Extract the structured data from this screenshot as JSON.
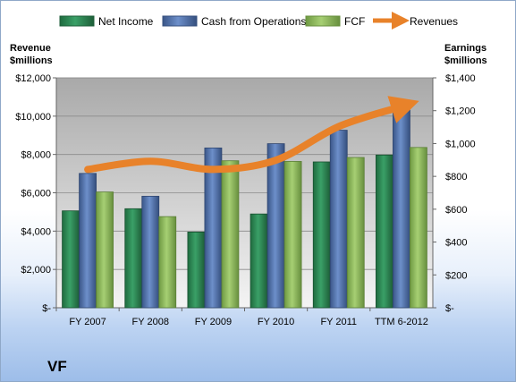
{
  "chart_data": {
    "type": "bar",
    "title": "",
    "company": "VF",
    "categories": [
      "FY 2007",
      "FY 2008",
      "FY 2009",
      "FY 2010",
      "FY 2011",
      "TTM 6-2012"
    ],
    "left_axis": {
      "label_line1": "Revenue",
      "label_line2": "$millions",
      "ylim": [
        0,
        12000
      ],
      "ticks": [
        0,
        2000,
        4000,
        6000,
        8000,
        10000,
        12000
      ],
      "tick_labels": [
        "$-",
        "$2,000",
        "$4,000",
        "$6,000",
        "$8,000",
        "$10,000",
        "$12,000"
      ]
    },
    "right_axis": {
      "label_line1": "Earnings",
      "label_line2": "$millions",
      "ylim": [
        0,
        1400
      ],
      "ticks": [
        0,
        200,
        400,
        600,
        800,
        1000,
        1200,
        1400
      ],
      "tick_labels": [
        "$-",
        "$200",
        "$400",
        "$600",
        "$800",
        "$1,000",
        "$1,200",
        "$1,400"
      ]
    },
    "series": [
      {
        "name": "Net Income",
        "type": "bar",
        "axis": "right",
        "color": "#2e8b57",
        "values": [
          590,
          603,
          461,
          571,
          888,
          930
        ]
      },
      {
        "name": "Cash from Operations",
        "type": "bar",
        "axis": "right",
        "color": "#4f6fa8",
        "values": [
          818,
          679,
          973,
          999,
          1081,
          1204
        ]
      },
      {
        "name": "FCF",
        "type": "bar",
        "axis": "right",
        "color": "#8db85a",
        "values": [
          705,
          555,
          895,
          891,
          915,
          976
        ]
      },
      {
        "name": "Revenues",
        "type": "line",
        "axis": "left",
        "color": "#e8822a",
        "values": [
          7219,
          7643,
          7220,
          7702,
          9459,
          10500
        ]
      }
    ],
    "grid": true,
    "legend_position": "top"
  }
}
